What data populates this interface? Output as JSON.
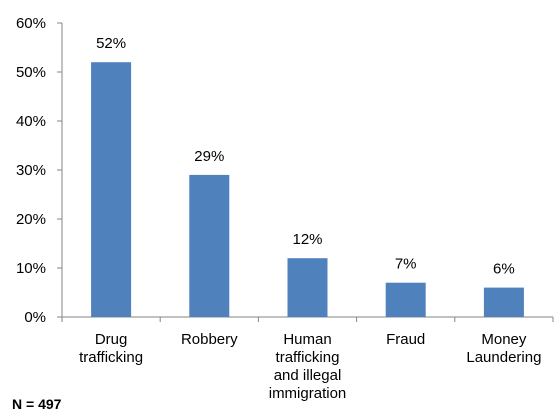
{
  "chart_data": {
    "type": "bar",
    "categories": [
      [
        "Drug",
        "trafficking"
      ],
      [
        "Robbery"
      ],
      [
        "Human",
        "trafficking",
        "and illegal",
        "immigration"
      ],
      [
        "Fraud"
      ],
      [
        "Money",
        "Laundering"
      ]
    ],
    "values": [
      52,
      29,
      12,
      7,
      6
    ],
    "data_labels": [
      "52%",
      "29%",
      "12%",
      "7%",
      "6%"
    ],
    "title": "",
    "xlabel": "",
    "ylabel": "",
    "ylim": [
      0,
      60
    ],
    "y_ticks": [
      "0%",
      "10%",
      "20%",
      "30%",
      "40%",
      "50%",
      "60%"
    ],
    "grid": false,
    "legend": "none",
    "bar_color": "#4f81bd"
  },
  "footnote": "N = 497"
}
